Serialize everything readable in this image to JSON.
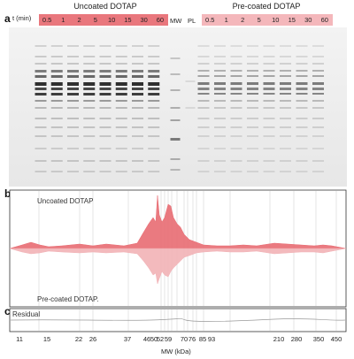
{
  "panel_a": {
    "letter": "a",
    "time_label": "t (min)",
    "groups": {
      "uncoated": "Uncoated DOTAP",
      "precoated": "Pre-coated DOTAP"
    },
    "timepoints": [
      "0.5",
      "1",
      "2",
      "5",
      "10",
      "15",
      "30",
      "60"
    ],
    "mw_label": "MW",
    "pl_label": "PL",
    "colors": {
      "uncoated_header": "#e9777d",
      "precoated_header": "#f4b7bb",
      "gel_bg": "#efefef",
      "band": "#1e1e1e"
    }
  },
  "panel_b": {
    "letter": "b",
    "top_label": "Uncoated DOTAP",
    "bottom_label": "Pre-coated DOTAP.",
    "colors": {
      "top_fill": "#e86b72",
      "bottom_fill": "#f2b2b6"
    }
  },
  "panel_c": {
    "letter": "c",
    "residual_label": "Residual"
  },
  "mw_axis": {
    "title": "MW (kDa)",
    "ticks": [
      "11",
      "15",
      "22",
      "26",
      "37",
      "46",
      "50",
      "52",
      "59",
      "70",
      "76",
      "85",
      "93",
      "210",
      "280",
      "350",
      "450"
    ]
  }
}
